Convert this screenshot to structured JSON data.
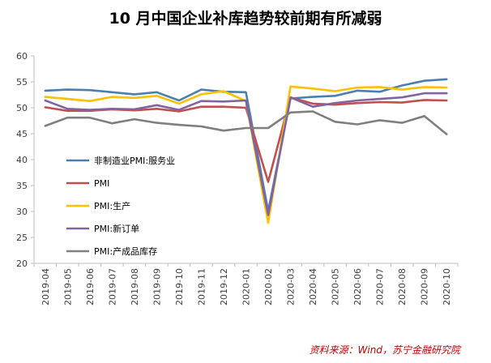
{
  "title": "10 月中国企业补库趋势较前期有所减弱",
  "source": "资料来源：Wind，苏宁金融研究院",
  "chart_data": {
    "type": "line",
    "categories": [
      "2019-04",
      "2019-05",
      "2019-06",
      "2019-07",
      "2019-08",
      "2019-09",
      "2019-10",
      "2019-11",
      "2019-12",
      "2020-01",
      "2020-02",
      "2020-03",
      "2020-04",
      "2020-05",
      "2020-06",
      "2020-07",
      "2020-08",
      "2020-09",
      "2020-10"
    ],
    "ylim": [
      20,
      60
    ],
    "yticks": [
      20,
      25,
      30,
      35,
      40,
      45,
      50,
      55,
      60
    ],
    "legend_position": "left",
    "grid": false,
    "series": [
      {
        "name": "非制造业PMI:服务业",
        "color": "#4a7fb0",
        "values": [
          53.3,
          53.5,
          53.4,
          53.0,
          52.6,
          53.0,
          51.4,
          53.5,
          53.1,
          53.0,
          30.1,
          51.8,
          52.1,
          52.3,
          53.3,
          53.1,
          54.3,
          55.2,
          55.5
        ]
      },
      {
        "name": "PMI",
        "color": "#c0504d",
        "values": [
          50.1,
          49.4,
          49.4,
          49.7,
          49.5,
          49.8,
          49.3,
          50.2,
          50.2,
          50.0,
          35.7,
          52.0,
          50.8,
          50.6,
          50.9,
          51.1,
          51.0,
          51.5,
          51.4
        ]
      },
      {
        "name": "PMI:生产",
        "color": "#ffc000",
        "values": [
          52.1,
          51.7,
          51.3,
          52.1,
          51.9,
          52.3,
          50.8,
          52.6,
          53.2,
          51.3,
          27.8,
          54.1,
          53.7,
          53.2,
          53.9,
          54.0,
          53.5,
          54.0,
          53.9
        ]
      },
      {
        "name": "PMI:新订单",
        "color": "#8064a2",
        "values": [
          51.4,
          49.8,
          49.6,
          49.8,
          49.7,
          50.5,
          49.6,
          51.3,
          51.2,
          51.4,
          29.3,
          52.0,
          50.2,
          50.9,
          51.4,
          51.7,
          52.0,
          52.8,
          52.8
        ]
      },
      {
        "name": "PMI:产成品库存",
        "color": "#7f7f7f",
        "values": [
          46.5,
          48.1,
          48.1,
          47.0,
          47.8,
          47.1,
          46.7,
          46.4,
          45.6,
          46.1,
          46.1,
          49.1,
          49.3,
          47.3,
          46.8,
          47.6,
          47.1,
          48.4,
          44.9
        ]
      }
    ]
  }
}
